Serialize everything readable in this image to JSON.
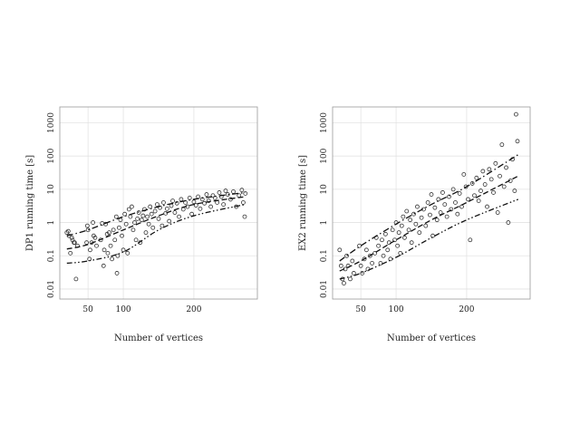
{
  "chart_data": [
    {
      "id": "dp1",
      "type": "scatter",
      "title": "",
      "xlabel": "Number of vertices",
      "ylabel": "DP1 running time [s]",
      "xlim": [
        10,
        290
      ],
      "ylim": [
        0.005,
        3000
      ],
      "yscale": "log",
      "grid": true,
      "xticks": [
        50,
        100,
        200
      ],
      "xtick_labels": [
        "50",
        "100",
        "200"
      ],
      "yticks": [
        0.01,
        0.1,
        1,
        10,
        100,
        1000
      ],
      "ytick_labels": [
        "0.01",
        "0.1",
        "1",
        "10",
        "100",
        "1000"
      ],
      "points": [
        [
          20,
          0.5
        ],
        [
          22,
          0.55
        ],
        [
          23,
          0.4
        ],
        [
          25,
          0.12
        ],
        [
          27,
          0.35
        ],
        [
          28,
          0.3
        ],
        [
          30,
          0.25
        ],
        [
          31,
          0.25
        ],
        [
          33,
          0.02
        ],
        [
          35,
          0.2
        ],
        [
          48,
          0.25
        ],
        [
          49,
          0.8
        ],
        [
          50,
          0.6
        ],
        [
          52,
          0.08
        ],
        [
          53,
          0.15
        ],
        [
          55,
          0.25
        ],
        [
          57,
          1.0
        ],
        [
          58,
          0.4
        ],
        [
          60,
          0.35
        ],
        [
          62,
          0.2
        ],
        [
          68,
          0.3
        ],
        [
          70,
          0.95
        ],
        [
          72,
          0.05
        ],
        [
          73,
          0.15
        ],
        [
          75,
          0.9
        ],
        [
          77,
          0.45
        ],
        [
          78,
          0.12
        ],
        [
          80,
          0.5
        ],
        [
          82,
          0.2
        ],
        [
          84,
          0.08
        ],
        [
          86,
          0.6
        ],
        [
          88,
          0.3
        ],
        [
          90,
          1.5
        ],
        [
          91,
          0.03
        ],
        [
          92,
          0.1
        ],
        [
          94,
          0.7
        ],
        [
          96,
          1.2
        ],
        [
          98,
          0.4
        ],
        [
          100,
          0.15
        ],
        [
          102,
          1.8
        ],
        [
          104,
          0.9
        ],
        [
          106,
          0.12
        ],
        [
          108,
          2.5
        ],
        [
          110,
          1.5
        ],
        [
          112,
          3.0
        ],
        [
          114,
          0.6
        ],
        [
          116,
          1.0
        ],
        [
          118,
          0.3
        ],
        [
          120,
          1.3
        ],
        [
          122,
          2.0
        ],
        [
          124,
          0.25
        ],
        [
          126,
          1.2
        ],
        [
          128,
          1.6
        ],
        [
          130,
          2.5
        ],
        [
          132,
          0.5
        ],
        [
          134,
          1.5
        ],
        [
          136,
          0.9
        ],
        [
          138,
          3.0
        ],
        [
          140,
          1.8
        ],
        [
          142,
          0.7
        ],
        [
          145,
          2.2
        ],
        [
          148,
          3.5
        ],
        [
          150,
          1.3
        ],
        [
          152,
          2.8
        ],
        [
          155,
          0.8
        ],
        [
          157,
          4.0
        ],
        [
          160,
          1.9
        ],
        [
          162,
          2.6
        ],
        [
          165,
          1.1
        ],
        [
          168,
          3.2
        ],
        [
          170,
          4.5
        ],
        [
          173,
          2.0
        ],
        [
          176,
          3.8
        ],
        [
          179,
          1.5
        ],
        [
          182,
          5.0
        ],
        [
          185,
          2.5
        ],
        [
          188,
          4.0
        ],
        [
          191,
          3.0
        ],
        [
          194,
          5.5
        ],
        [
          197,
          1.8
        ],
        [
          200,
          4.2
        ],
        [
          203,
          3.3
        ],
        [
          206,
          6.0
        ],
        [
          209,
          2.6
        ],
        [
          212,
          5.0
        ],
        [
          215,
          3.8
        ],
        [
          218,
          7.0
        ],
        [
          221,
          4.5
        ],
        [
          224,
          3.0
        ],
        [
          227,
          6.5
        ],
        [
          230,
          5.5
        ],
        [
          233,
          4.0
        ],
        [
          236,
          8.0
        ],
        [
          239,
          6.0
        ],
        [
          242,
          3.5
        ],
        [
          245,
          9.0
        ],
        [
          248,
          7.0
        ],
        [
          252,
          5.0
        ],
        [
          256,
          8.5
        ],
        [
          260,
          3.0
        ],
        [
          264,
          6.5
        ],
        [
          268,
          9.5
        ],
        [
          270,
          4.0
        ],
        [
          272,
          1.5
        ],
        [
          273,
          7.5
        ]
      ],
      "curves": [
        {
          "style": "dash-dot",
          "x": [
            20,
            50,
            100,
            150,
            200,
            273
          ],
          "y": [
            0.4,
            0.6,
            1.5,
            3.0,
            5.0,
            8.0
          ]
        },
        {
          "style": "dashed",
          "x": [
            20,
            50,
            100,
            150,
            200,
            273
          ],
          "y": [
            0.16,
            0.22,
            0.6,
            1.6,
            3.5,
            6.0
          ]
        },
        {
          "style": "dash-dot-dot",
          "x": [
            20,
            50,
            100,
            150,
            200,
            273
          ],
          "y": [
            0.06,
            0.07,
            0.13,
            0.6,
            1.6,
            3.5
          ]
        }
      ]
    },
    {
      "id": "ex2",
      "type": "scatter",
      "title": "",
      "xlabel": "Number of vertices",
      "ylabel": "EX2 running time [s]",
      "xlim": [
        10,
        290
      ],
      "ylim": [
        0.005,
        3000
      ],
      "yscale": "log",
      "grid": true,
      "xticks": [
        50,
        100,
        200
      ],
      "xtick_labels": [
        "50",
        "100",
        "200"
      ],
      "yticks": [
        0.01,
        0.1,
        1,
        10,
        100,
        1000
      ],
      "ytick_labels": [
        "0.01",
        "0.1",
        "1",
        "10",
        "100",
        "1000"
      ],
      "points": [
        [
          20,
          0.15
        ],
        [
          22,
          0.05
        ],
        [
          24,
          0.02
        ],
        [
          26,
          0.015
        ],
        [
          28,
          0.04
        ],
        [
          30,
          0.1
        ],
        [
          32,
          0.05
        ],
        [
          35,
          0.02
        ],
        [
          38,
          0.07
        ],
        [
          40,
          0.03
        ],
        [
          48,
          0.2
        ],
        [
          50,
          0.05
        ],
        [
          52,
          0.03
        ],
        [
          55,
          0.08
        ],
        [
          58,
          0.15
        ],
        [
          60,
          0.04
        ],
        [
          63,
          0.1
        ],
        [
          66,
          0.06
        ],
        [
          70,
          0.12
        ],
        [
          72,
          0.35
        ],
        [
          75,
          0.2
        ],
        [
          78,
          0.06
        ],
        [
          80,
          0.3
        ],
        [
          82,
          0.1
        ],
        [
          85,
          0.45
        ],
        [
          88,
          0.15
        ],
        [
          90,
          0.25
        ],
        [
          92,
          0.08
        ],
        [
          95,
          0.6
        ],
        [
          98,
          0.3
        ],
        [
          100,
          1.0
        ],
        [
          102,
          0.2
        ],
        [
          104,
          0.5
        ],
        [
          106,
          0.12
        ],
        [
          108,
          0.8
        ],
        [
          110,
          1.5
        ],
        [
          112,
          0.35
        ],
        [
          115,
          2.2
        ],
        [
          118,
          0.6
        ],
        [
          120,
          1.2
        ],
        [
          122,
          0.25
        ],
        [
          125,
          1.8
        ],
        [
          128,
          0.9
        ],
        [
          130,
          3.0
        ],
        [
          133,
          0.5
        ],
        [
          136,
          1.4
        ],
        [
          139,
          2.5
        ],
        [
          142,
          0.8
        ],
        [
          145,
          4.0
        ],
        [
          148,
          1.7
        ],
        [
          150,
          7.0
        ],
        [
          152,
          0.4
        ],
        [
          155,
          2.8
        ],
        [
          158,
          1.2
        ],
        [
          160,
          5.0
        ],
        [
          163,
          2.0
        ],
        [
          166,
          8.0
        ],
        [
          169,
          3.5
        ],
        [
          172,
          1.5
        ],
        [
          175,
          6.0
        ],
        [
          178,
          2.5
        ],
        [
          181,
          10.0
        ],
        [
          184,
          4.0
        ],
        [
          187,
          1.8
        ],
        [
          190,
          7.5
        ],
        [
          193,
          3.0
        ],
        [
          196,
          28.0
        ],
        [
          199,
          12.0
        ],
        [
          202,
          5.0
        ],
        [
          205,
          0.3
        ],
        [
          208,
          15.0
        ],
        [
          211,
          6.5
        ],
        [
          214,
          22.0
        ],
        [
          217,
          4.5
        ],
        [
          220,
          9.0
        ],
        [
          223,
          35.0
        ],
        [
          226,
          14.0
        ],
        [
          229,
          3.0
        ],
        [
          232,
          40.0
        ],
        [
          235,
          20.0
        ],
        [
          238,
          8.0
        ],
        [
          241,
          60.0
        ],
        [
          244,
          2.0
        ],
        [
          247,
          25.0
        ],
        [
          250,
          220.0
        ],
        [
          253,
          12.0
        ],
        [
          256,
          45.0
        ],
        [
          259,
          1.0
        ],
        [
          262,
          18.0
        ],
        [
          265,
          80.0
        ],
        [
          268,
          9.0
        ],
        [
          270,
          1800.0
        ],
        [
          272,
          280.0
        ]
      ],
      "curves": [
        {
          "style": "dash-dot",
          "x": [
            20,
            50,
            100,
            150,
            200,
            273
          ],
          "y": [
            0.07,
            0.2,
            0.9,
            3.5,
            12.0,
            110.0
          ]
        },
        {
          "style": "dashed",
          "x": [
            20,
            50,
            100,
            150,
            200,
            273
          ],
          "y": [
            0.035,
            0.07,
            0.3,
            1.2,
            4.0,
            25.0
          ]
        },
        {
          "style": "dash-dot-dot",
          "x": [
            20,
            50,
            100,
            150,
            200,
            273
          ],
          "y": [
            0.02,
            0.03,
            0.09,
            0.35,
            1.2,
            5.0
          ]
        }
      ]
    }
  ]
}
